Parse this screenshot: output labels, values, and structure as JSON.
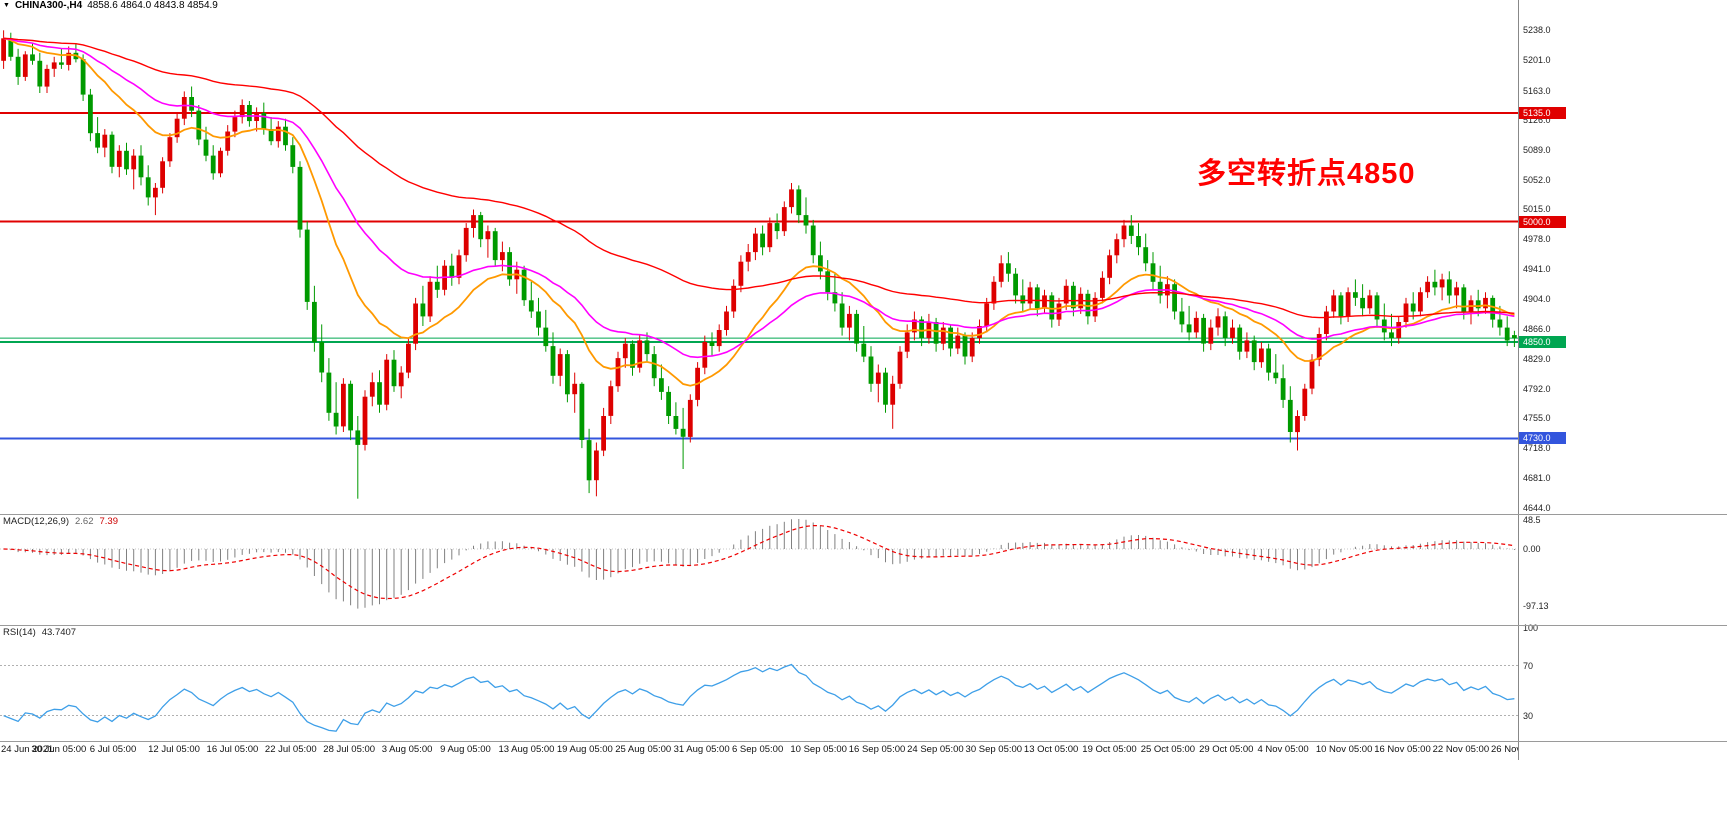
{
  "header": {
    "dropdown_icon": "▼",
    "symbol_timeframe": "CHINA300-,H4",
    "ohlc": "4858.6 4864.0 4843.8 4854.9"
  },
  "chart_data": {
    "type": "candlestick",
    "symbol": "CHINA300-",
    "timeframe": "H4",
    "title": "CHINA300-,H4",
    "current_ohlc": {
      "open": 4858.6,
      "high": 4864.0,
      "low": 4843.8,
      "close": 4854.9
    },
    "up_color": "#dd0000",
    "down_color": "#009a00",
    "y_axis": {
      "ticks": [
        "5238.0",
        "5201.0",
        "5163.0",
        "5126.0",
        "5089.0",
        "5052.0",
        "5015.0",
        "4978.0",
        "4941.0",
        "4904.0",
        "4866.0",
        "4829.0",
        "4792.0",
        "4755.0",
        "4718.0",
        "4681.0",
        "4644.0"
      ],
      "top_value": 5262,
      "bottom_value": 4636
    },
    "x_labels": [
      "24 Jun 2021",
      "30 Jun 05:00",
      "6 Jul 05:00",
      "12 Jul 05:00",
      "16 Jul 05:00",
      "22 Jul 05:00",
      "28 Jul 05:00",
      "3 Aug 05:00",
      "9 Aug 05:00",
      "13 Aug 05:00",
      "19 Aug 05:00",
      "25 Aug 05:00",
      "31 Aug 05:00",
      "6 Sep 05:00",
      "10 Sep 05:00",
      "16 Sep 05:00",
      "24 Sep 05:00",
      "30 Sep 05:00",
      "13 Oct 05:00",
      "19 Oct 05:00",
      "25 Oct 05:00",
      "29 Oct 05:00",
      "4 Nov 05:00",
      "10 Nov 05:00",
      "16 Nov 05:00",
      "22 Nov 05:00",
      "26 Nov 05:00"
    ],
    "horizontal_lines": [
      {
        "value": 5135.0,
        "label": "5135.0",
        "color": "#e00000"
      },
      {
        "value": 5000.0,
        "label": "5000.0",
        "color": "#e00000"
      },
      {
        "value": 4850.0,
        "label": "4850.0",
        "color": "#00a651"
      },
      {
        "value": 4730.0,
        "label": "4730.0",
        "color": "#3355dd"
      }
    ],
    "current_price_line": {
      "value": 4854.9,
      "color": "#00a651"
    },
    "annotation": {
      "text": "多空转折点4850",
      "color": "#ff0000"
    },
    "moving_averages": [
      {
        "name": "fast-ma",
        "period": 18,
        "color": "#ff9900"
      },
      {
        "name": "medium-ma",
        "period": 36,
        "color": "#ff00ff"
      },
      {
        "name": "slow-ma",
        "period": 85,
        "color": "#ff0000"
      }
    ],
    "candles": [
      [
        5200,
        5238,
        5190,
        5228
      ],
      [
        5228,
        5235,
        5200,
        5205
      ],
      [
        5205,
        5215,
        5170,
        5180
      ],
      [
        5180,
        5212,
        5175,
        5208
      ],
      [
        5208,
        5222,
        5195,
        5200
      ],
      [
        5200,
        5210,
        5160,
        5168
      ],
      [
        5168,
        5195,
        5160,
        5190
      ],
      [
        5190,
        5205,
        5180,
        5198
      ],
      [
        5198,
        5215,
        5190,
        5195
      ],
      [
        5195,
        5218,
        5188,
        5210
      ],
      [
        5210,
        5222,
        5198,
        5202
      ],
      [
        5202,
        5208,
        5150,
        5158
      ],
      [
        5158,
        5165,
        5100,
        5110
      ],
      [
        5110,
        5130,
        5085,
        5092
      ],
      [
        5092,
        5115,
        5080,
        5108
      ],
      [
        5108,
        5112,
        5060,
        5068
      ],
      [
        5068,
        5095,
        5055,
        5088
      ],
      [
        5088,
        5098,
        5058,
        5065
      ],
      [
        5065,
        5090,
        5040,
        5082
      ],
      [
        5082,
        5095,
        5045,
        5055
      ],
      [
        5055,
        5070,
        5020,
        5030
      ],
      [
        5030,
        5048,
        5008,
        5042
      ],
      [
        5042,
        5080,
        5035,
        5075
      ],
      [
        5075,
        5110,
        5068,
        5105
      ],
      [
        5105,
        5135,
        5098,
        5128
      ],
      [
        5128,
        5162,
        5120,
        5155
      ],
      [
        5155,
        5168,
        5130,
        5138
      ],
      [
        5138,
        5145,
        5095,
        5102
      ],
      [
        5102,
        5118,
        5075,
        5082
      ],
      [
        5082,
        5095,
        5052,
        5060
      ],
      [
        5060,
        5092,
        5055,
        5088
      ],
      [
        5088,
        5120,
        5082,
        5112
      ],
      [
        5112,
        5138,
        5105,
        5130
      ],
      [
        5130,
        5152,
        5122,
        5145
      ],
      [
        5145,
        5150,
        5118,
        5125
      ],
      [
        5125,
        5142,
        5112,
        5135
      ],
      [
        5135,
        5148,
        5108,
        5115
      ],
      [
        5115,
        5130,
        5095,
        5100
      ],
      [
        5100,
        5125,
        5092,
        5118
      ],
      [
        5118,
        5128,
        5088,
        5095
      ],
      [
        5095,
        5105,
        5060,
        5068
      ],
      [
        5068,
        5075,
        4980,
        4990
      ],
      [
        4990,
        5000,
        4890,
        4900
      ],
      [
        4900,
        4920,
        4838,
        4850
      ],
      [
        4850,
        4872,
        4800,
        4812
      ],
      [
        4812,
        4830,
        4752,
        4762
      ],
      [
        4762,
        4800,
        4735,
        4745
      ],
      [
        4745,
        4805,
        4738,
        4798
      ],
      [
        4798,
        4802,
        4728,
        4740
      ],
      [
        4740,
        4758,
        4655,
        4722
      ],
      [
        4722,
        4790,
        4715,
        4782
      ],
      [
        4782,
        4812,
        4770,
        4800
      ],
      [
        4800,
        4815,
        4762,
        4772
      ],
      [
        4772,
        4835,
        4765,
        4828
      ],
      [
        4828,
        4840,
        4788,
        4795
      ],
      [
        4795,
        4820,
        4780,
        4812
      ],
      [
        4812,
        4855,
        4805,
        4848
      ],
      [
        4848,
        4905,
        4840,
        4898
      ],
      [
        4898,
        4920,
        4870,
        4882
      ],
      [
        4882,
        4932,
        4875,
        4925
      ],
      [
        4925,
        4945,
        4905,
        4915
      ],
      [
        4915,
        4952,
        4908,
        4945
      ],
      [
        4945,
        4960,
        4920,
        4930
      ],
      [
        4930,
        4965,
        4922,
        4958
      ],
      [
        4958,
        4998,
        4950,
        4992
      ],
      [
        4992,
        5015,
        4980,
        5008
      ],
      [
        5008,
        5012,
        4968,
        4978
      ],
      [
        4978,
        4995,
        4955,
        4988
      ],
      [
        4988,
        4992,
        4945,
        4952
      ],
      [
        4952,
        4975,
        4938,
        4962
      ],
      [
        4962,
        4968,
        4920,
        4928
      ],
      [
        4928,
        4950,
        4910,
        4940
      ],
      [
        4940,
        4945,
        4895,
        4902
      ],
      [
        4902,
        4925,
        4880,
        4888
      ],
      [
        4888,
        4905,
        4858,
        4868
      ],
      [
        4868,
        4890,
        4838,
        4845
      ],
      [
        4845,
        4862,
        4798,
        4808
      ],
      [
        4808,
        4842,
        4795,
        4835
      ],
      [
        4835,
        4840,
        4775,
        4785
      ],
      [
        4785,
        4812,
        4762,
        4798
      ],
      [
        4798,
        4800,
        4718,
        4728
      ],
      [
        4728,
        4742,
        4662,
        4678
      ],
      [
        4678,
        4725,
        4658,
        4715
      ],
      [
        4715,
        4768,
        4708,
        4758
      ],
      [
        4758,
        4802,
        4748,
        4795
      ],
      [
        4795,
        4838,
        4788,
        4830
      ],
      [
        4830,
        4855,
        4818,
        4848
      ],
      [
        4848,
        4852,
        4808,
        4818
      ],
      [
        4818,
        4860,
        4812,
        4852
      ],
      [
        4852,
        4862,
        4825,
        4835
      ],
      [
        4835,
        4845,
        4795,
        4805
      ],
      [
        4805,
        4822,
        4778,
        4788
      ],
      [
        4788,
        4795,
        4748,
        4758
      ],
      [
        4758,
        4775,
        4735,
        4742
      ],
      [
        4742,
        4768,
        4692,
        4732
      ],
      [
        4732,
        4785,
        4725,
        4778
      ],
      [
        4778,
        4825,
        4770,
        4818
      ],
      [
        4818,
        4858,
        4810,
        4850
      ],
      [
        4850,
        4862,
        4832,
        4845
      ],
      [
        4845,
        4872,
        4838,
        4865
      ],
      [
        4865,
        4895,
        4858,
        4888
      ],
      [
        4888,
        4928,
        4880,
        4920
      ],
      [
        4920,
        4958,
        4912,
        4950
      ],
      [
        4950,
        4972,
        4938,
        4962
      ],
      [
        4962,
        4992,
        4952,
        4985
      ],
      [
        4985,
        4995,
        4958,
        4968
      ],
      [
        4968,
        5005,
        4962,
        4998
      ],
      [
        4998,
        5010,
        4978,
        4988
      ],
      [
        4988,
        5025,
        4982,
        5018
      ],
      [
        5018,
        5048,
        5010,
        5040
      ],
      [
        5040,
        5045,
        4998,
        5008
      ],
      [
        5008,
        5030,
        4985,
        4995
      ],
      [
        4995,
        5002,
        4948,
        4958
      ],
      [
        4958,
        4975,
        4928,
        4938
      ],
      [
        4938,
        4952,
        4902,
        4912
      ],
      [
        4912,
        4935,
        4888,
        4898
      ],
      [
        4898,
        4912,
        4858,
        4868
      ],
      [
        4868,
        4895,
        4852,
        4885
      ],
      [
        4885,
        4890,
        4838,
        4848
      ],
      [
        4848,
        4870,
        4825,
        4832
      ],
      [
        4832,
        4845,
        4788,
        4798
      ],
      [
        4798,
        4822,
        4775,
        4812
      ],
      [
        4812,
        4818,
        4762,
        4772
      ],
      [
        4772,
        4808,
        4742,
        4798
      ],
      [
        4798,
        4845,
        4792,
        4838
      ],
      [
        4838,
        4872,
        4830,
        4862
      ],
      [
        4862,
        4888,
        4852,
        4878
      ],
      [
        4878,
        4882,
        4845,
        4855
      ],
      [
        4855,
        4885,
        4848,
        4875
      ],
      [
        4875,
        4880,
        4838,
        4848
      ],
      [
        4848,
        4875,
        4840,
        4868
      ],
      [
        4868,
        4872,
        4832,
        4842
      ],
      [
        4842,
        4868,
        4835,
        4858
      ],
      [
        4858,
        4862,
        4822,
        4832
      ],
      [
        4832,
        4862,
        4825,
        4855
      ],
      [
        4855,
        4878,
        4848,
        4870
      ],
      [
        4870,
        4905,
        4862,
        4898
      ],
      [
        4898,
        4932,
        4890,
        4925
      ],
      [
        4925,
        4958,
        4918,
        4948
      ],
      [
        4948,
        4962,
        4925,
        4935
      ],
      [
        4935,
        4942,
        4898,
        4908
      ],
      [
        4908,
        4928,
        4888,
        4898
      ],
      [
        4898,
        4925,
        4890,
        4918
      ],
      [
        4918,
        4922,
        4882,
        4892
      ],
      [
        4892,
        4915,
        4885,
        4908
      ],
      [
        4908,
        4912,
        4868,
        4878
      ],
      [
        4878,
        4905,
        4870,
        4898
      ],
      [
        4898,
        4928,
        4890,
        4920
      ],
      [
        4920,
        4925,
        4882,
        4892
      ],
      [
        4892,
        4918,
        4885,
        4910
      ],
      [
        4910,
        4915,
        4872,
        4882
      ],
      [
        4882,
        4912,
        4875,
        4905
      ],
      [
        4905,
        4938,
        4898,
        4930
      ],
      [
        4930,
        4965,
        4922,
        4958
      ],
      [
        4958,
        4985,
        4948,
        4978
      ],
      [
        4978,
        5002,
        4968,
        4995
      ],
      [
        4995,
        5008,
        4972,
        4982
      ],
      [
        4982,
        4998,
        4958,
        4968
      ],
      [
        4968,
        4985,
        4938,
        4948
      ],
      [
        4948,
        4962,
        4915,
        4925
      ],
      [
        4925,
        4945,
        4898,
        4908
      ],
      [
        4908,
        4932,
        4892,
        4922
      ],
      [
        4922,
        4928,
        4878,
        4888
      ],
      [
        4888,
        4905,
        4862,
        4872
      ],
      [
        4872,
        4895,
        4852,
        4862
      ],
      [
        4862,
        4888,
        4855,
        4880
      ],
      [
        4880,
        4885,
        4838,
        4848
      ],
      [
        4848,
        4878,
        4840,
        4868
      ],
      [
        4868,
        4892,
        4858,
        4882
      ],
      [
        4882,
        4888,
        4845,
        4855
      ],
      [
        4855,
        4878,
        4848,
        4868
      ],
      [
        4868,
        4872,
        4828,
        4838
      ],
      [
        4838,
        4862,
        4830,
        4852
      ],
      [
        4852,
        4858,
        4815,
        4825
      ],
      [
        4825,
        4850,
        4818,
        4842
      ],
      [
        4842,
        4848,
        4802,
        4812
      ],
      [
        4812,
        4835,
        4798,
        4805
      ],
      [
        4805,
        4822,
        4768,
        4778
      ],
      [
        4778,
        4795,
        4725,
        4738
      ],
      [
        4738,
        4765,
        4715,
        4758
      ],
      [
        4758,
        4798,
        4752,
        4792
      ],
      [
        4792,
        4835,
        4785,
        4828
      ],
      [
        4828,
        4868,
        4820,
        4860
      ],
      [
        4860,
        4895,
        4852,
        4888
      ],
      [
        4888,
        4915,
        4880,
        4908
      ],
      [
        4908,
        4912,
        4872,
        4882
      ],
      [
        4882,
        4918,
        4875,
        4912
      ],
      [
        4912,
        4928,
        4895,
        4905
      ],
      [
        4905,
        4922,
        4882,
        4892
      ],
      [
        4892,
        4915,
        4885,
        4908
      ],
      [
        4908,
        4912,
        4868,
        4878
      ],
      [
        4878,
        4898,
        4852,
        4862
      ],
      [
        4862,
        4885,
        4845,
        4855
      ],
      [
        4855,
        4882,
        4848,
        4875
      ],
      [
        4875,
        4905,
        4868,
        4898
      ],
      [
        4898,
        4912,
        4878,
        4888
      ],
      [
        4888,
        4918,
        4882,
        4912
      ],
      [
        4912,
        4932,
        4905,
        4925
      ],
      [
        4925,
        4940,
        4908,
        4918
      ],
      [
        4918,
        4935,
        4902,
        4928
      ],
      [
        4928,
        4938,
        4898,
        4908
      ],
      [
        4908,
        4925,
        4892,
        4918
      ],
      [
        4918,
        4922,
        4878,
        4888
      ],
      [
        4888,
        4908,
        4872,
        4902
      ],
      [
        4902,
        4915,
        4882,
        4892
      ],
      [
        4892,
        4912,
        4885,
        4905
      ],
      [
        4905,
        4908,
        4868,
        4878
      ],
      [
        4878,
        4895,
        4858,
        4868
      ],
      [
        4868,
        4882,
        4845,
        4852
      ],
      [
        4858.6,
        4864,
        4843.8,
        4854.9
      ]
    ],
    "indicators": {
      "macd": {
        "label": "MACD(12,26,9)",
        "fast": 12,
        "slow": 26,
        "signal": 9,
        "main_value": "2.62",
        "signal_value": "7.39",
        "ticks": [
          "48.5",
          "0.00",
          "-97.13"
        ],
        "histogram_color": "#808080",
        "signal_color": "#ee0000"
      },
      "rsi": {
        "label": "RSI(14)",
        "period": 14,
        "value": "43.7407",
        "ticks": [
          "100",
          "70",
          "30"
        ],
        "levels": [
          70,
          30
        ],
        "line_color": "#3e9fe8"
      }
    }
  }
}
